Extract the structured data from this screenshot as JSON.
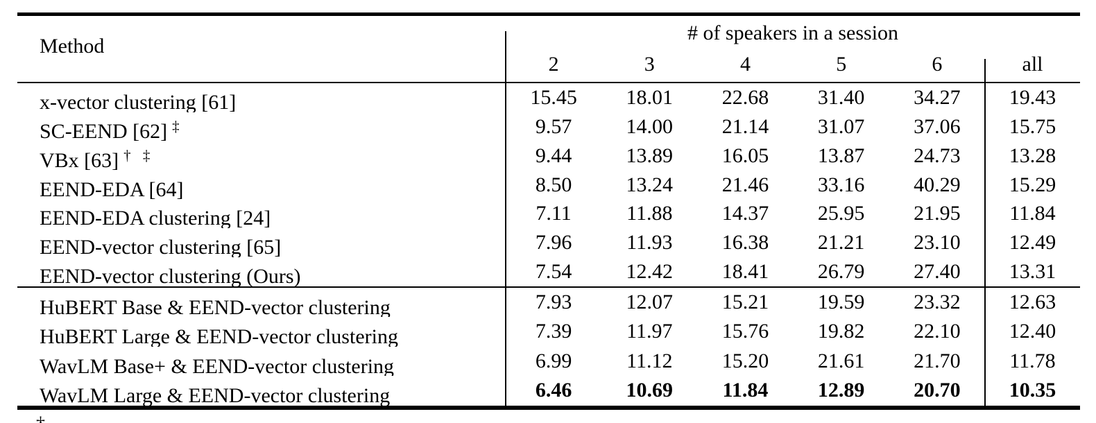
{
  "table": {
    "header": {
      "method": "Method",
      "group": "# of speakers in a session",
      "speakers": [
        "2",
        "3",
        "4",
        "5",
        "6"
      ],
      "all": "all"
    },
    "rows": [
      {
        "method": "x-vector clustering [61]",
        "sup": "",
        "v": [
          "15.45",
          "18.01",
          "22.68",
          "31.40",
          "34.27",
          "19.43"
        ]
      },
      {
        "method": "SC-EEND [62]",
        "sup": "‡",
        "v": [
          "9.57",
          "14.00",
          "21.14",
          "31.07",
          "37.06",
          "15.75"
        ]
      },
      {
        "method": "VBx [63]",
        "sup": "† ‡",
        "v": [
          "9.44",
          "13.89",
          "16.05",
          "13.87",
          "24.73",
          "13.28"
        ]
      },
      {
        "method": "EEND-EDA [64]",
        "sup": "",
        "v": [
          "8.50",
          "13.24",
          "21.46",
          "33.16",
          "40.29",
          "15.29"
        ]
      },
      {
        "method": "EEND-EDA clustering [24]",
        "sup": "",
        "v": [
          "7.11",
          "11.88",
          "14.37",
          "25.95",
          "21.95",
          "11.84"
        ]
      },
      {
        "method": "EEND-vector clustering [65]",
        "sup": "",
        "v": [
          "7.96",
          "11.93",
          "16.38",
          "21.21",
          "23.10",
          "12.49"
        ]
      },
      {
        "method": "EEND-vector clustering (Ours)",
        "sup": "",
        "v": [
          "7.54",
          "12.42",
          "18.41",
          "26.79",
          "27.40",
          "13.31"
        ]
      },
      {
        "method": "HuBERT Base & EEND-vector clustering",
        "sup": "",
        "v": [
          "7.93",
          "12.07",
          "15.21",
          "19.59",
          "23.32",
          "12.63"
        ]
      },
      {
        "method": "HuBERT Large & EEND-vector clustering",
        "sup": "",
        "v": [
          "7.39",
          "11.97",
          "15.76",
          "19.82",
          "22.10",
          "12.40"
        ]
      },
      {
        "method": "WavLM Base+ & EEND-vector clustering",
        "sup": "",
        "v": [
          "6.99",
          "11.12",
          "15.20",
          "21.61",
          "21.70",
          "11.78"
        ]
      },
      {
        "method": "WavLM Large & EEND-vector clustering",
        "sup": "",
        "v": [
          "6.46",
          "10.69",
          "11.84",
          "12.89",
          "20.70",
          "10.35"
        ]
      }
    ],
    "footnote_mark": "†"
  },
  "colors": {
    "text": "#000000",
    "rule": "#000000",
    "background": "#ffffff"
  }
}
